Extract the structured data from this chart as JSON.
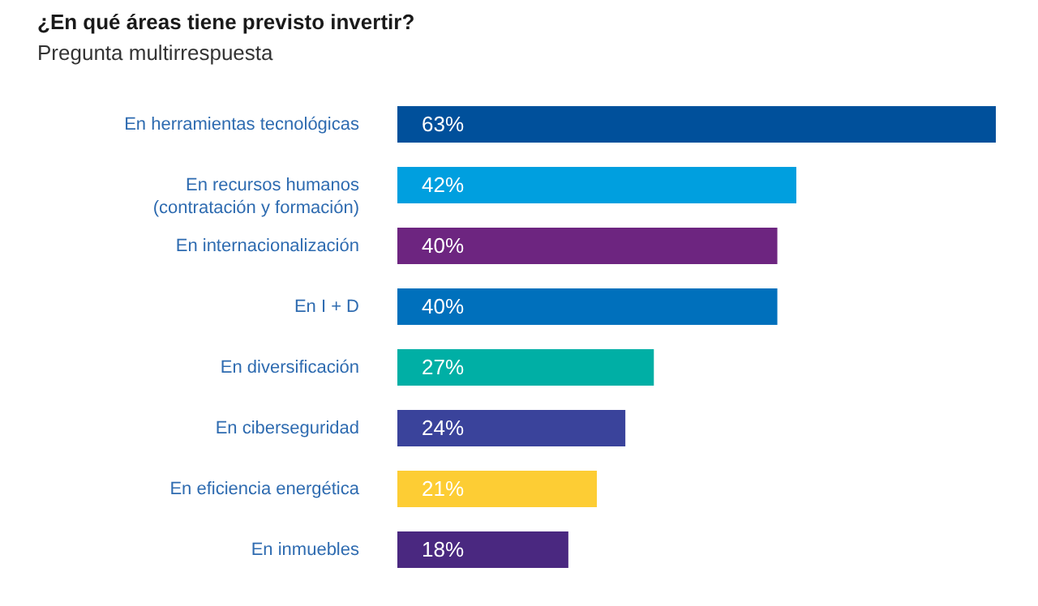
{
  "chart_data": {
    "type": "bar",
    "orientation": "horizontal",
    "title": "¿En qué áreas tiene previsto invertir?",
    "subtitle": "Pregunta multirrespuesta",
    "categories": [
      "En herramientas tecnológicas",
      "En recursos humanos\n(contratación y formación)",
      "En internacionalización",
      "En I + D",
      "En diversificación",
      "En ciberseguridad",
      "En eficiencia energética",
      "En inmuebles"
    ],
    "values": [
      63,
      42,
      40,
      40,
      27,
      24,
      21,
      18
    ],
    "value_labels": [
      "63%",
      "42%",
      "40%",
      "40%",
      "27%",
      "24%",
      "21%",
      "18%"
    ],
    "colors": [
      "#00509b",
      "#009fdf",
      "#6d2580",
      "#0070bc",
      "#00afa5",
      "#3a439b",
      "#fdcd34",
      "#4a2880"
    ]
  }
}
